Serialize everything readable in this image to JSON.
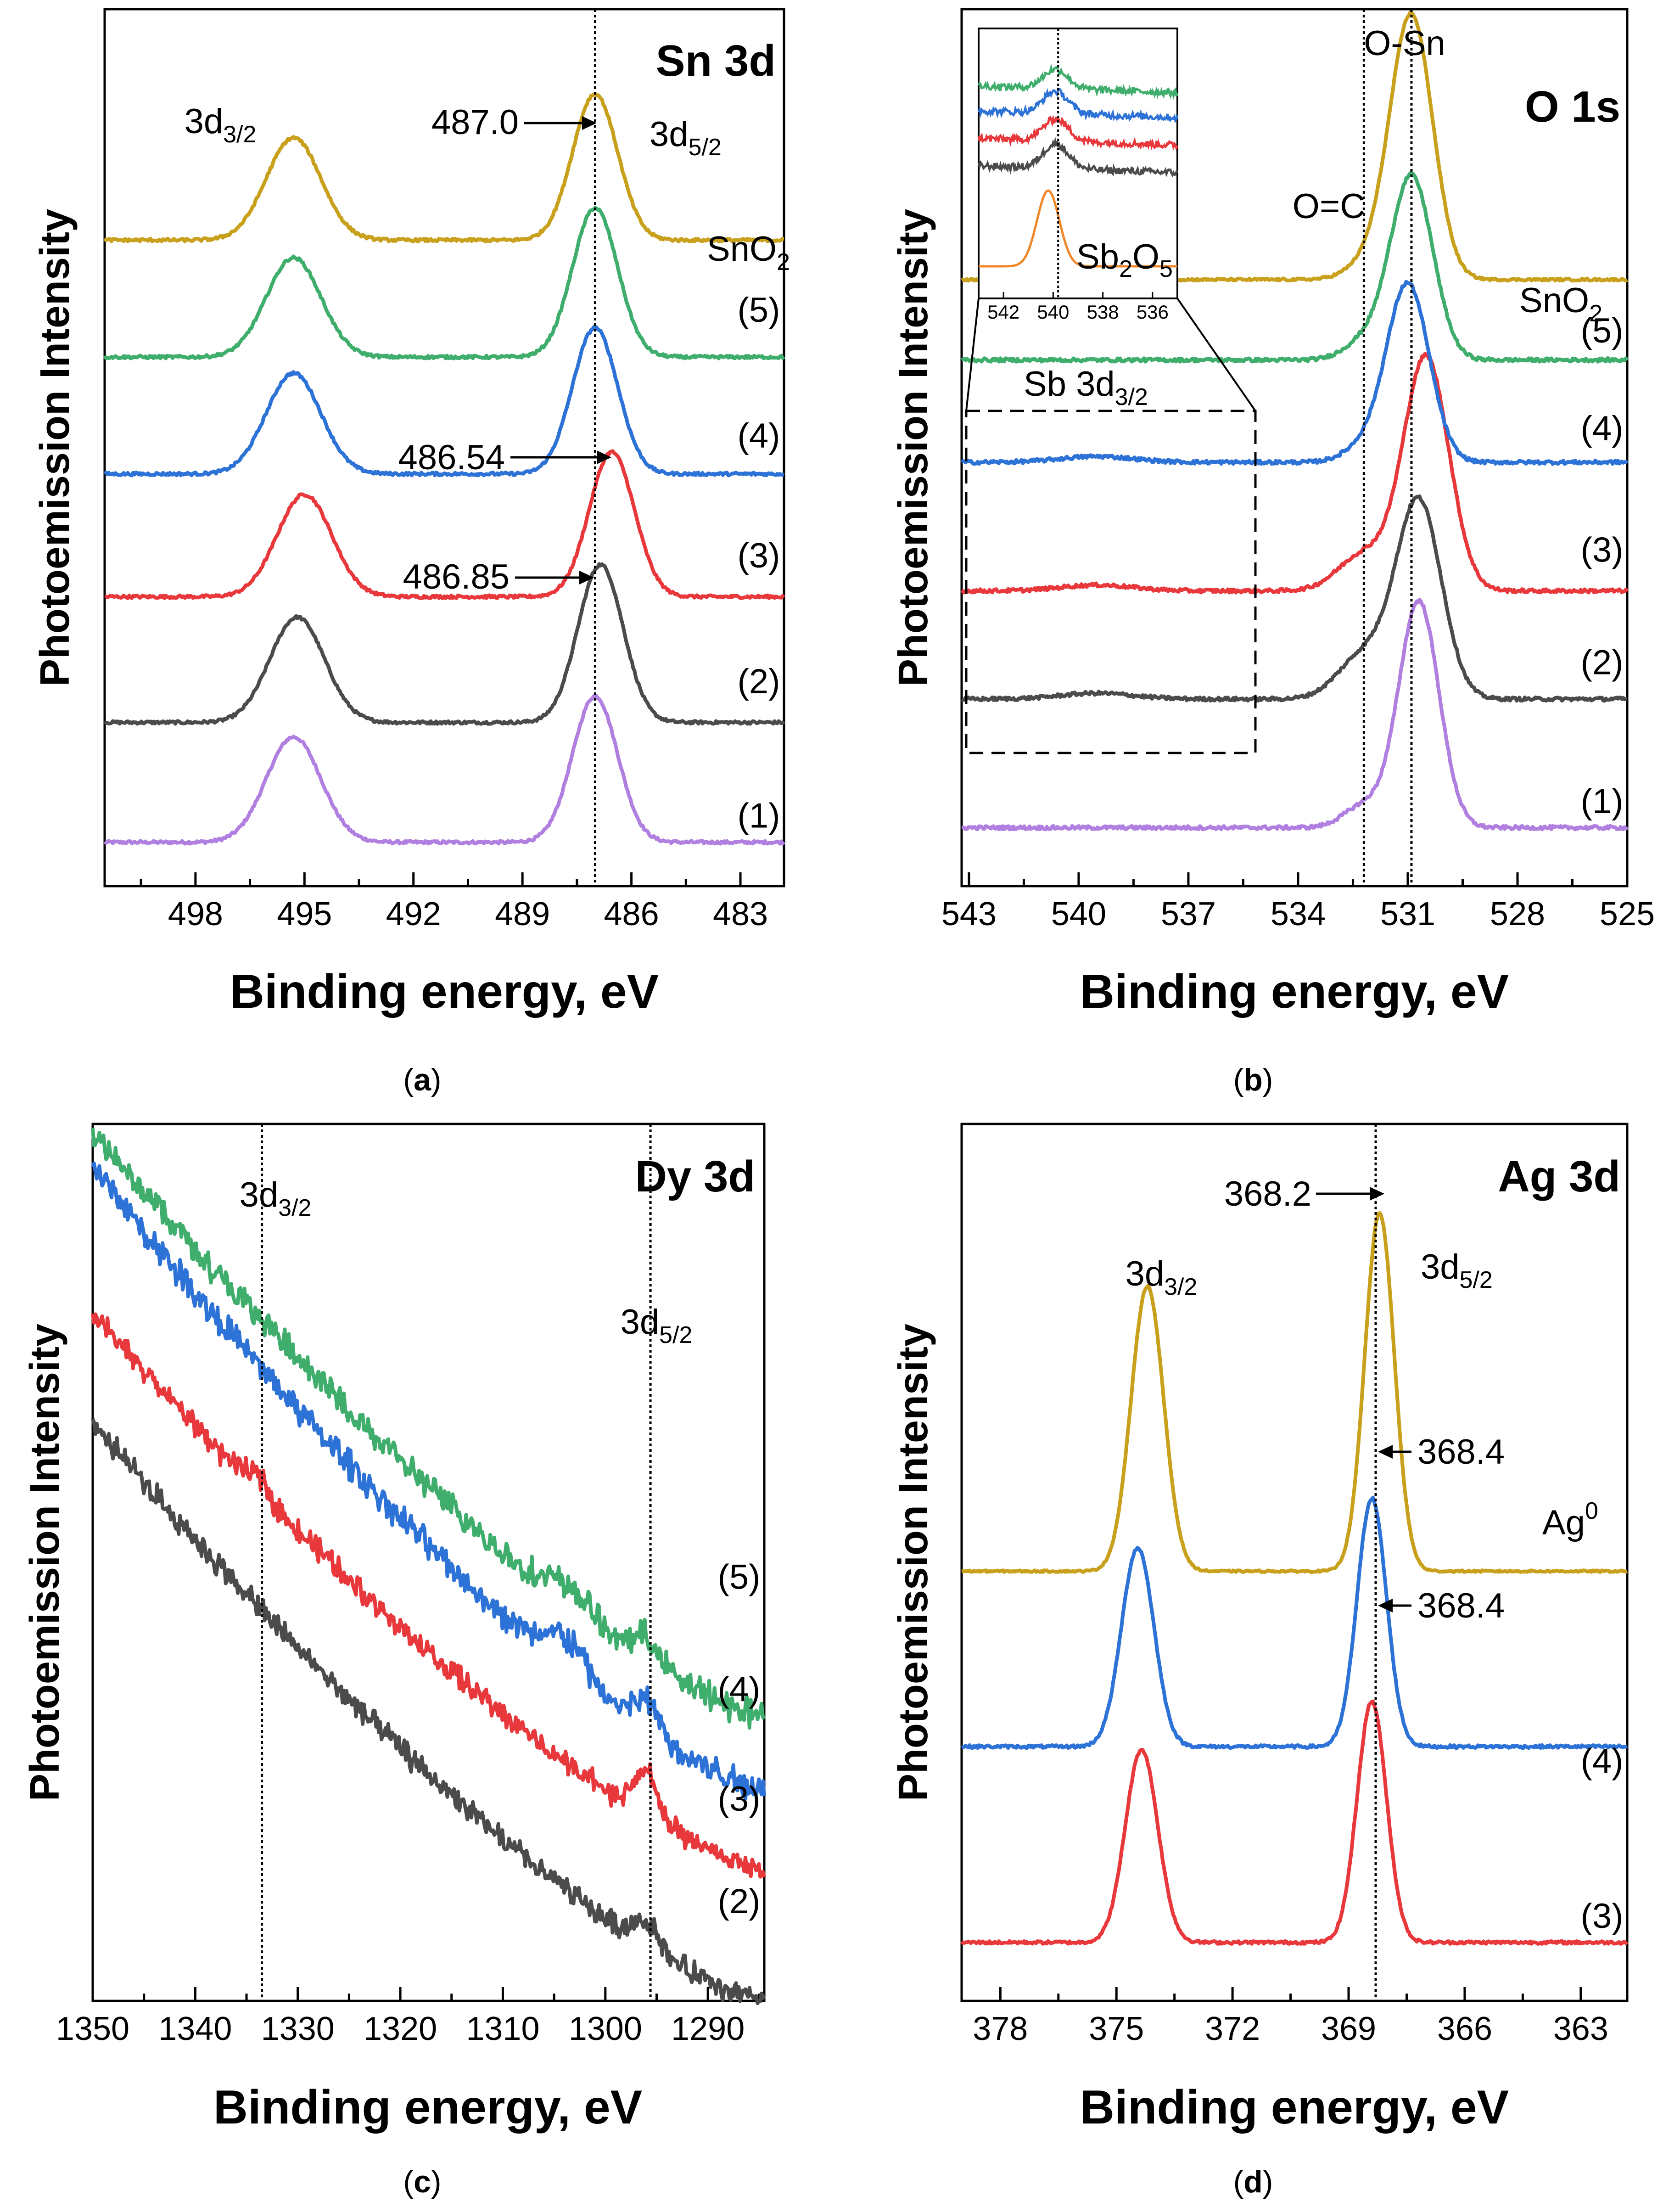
{
  "figure": {
    "captions": [
      "(a)",
      "(b)",
      "(c)",
      "(d)"
    ],
    "bold_captions": [
      "a",
      "b",
      "c",
      "d"
    ]
  },
  "colors": {
    "(1)": "#b07fe0",
    "(2)": "#4b4b4b",
    "(3)": "#e8383c",
    "(4)": "#2d72d6",
    "(5)": "#3fae6c",
    "SnO2": "#c9a01c",
    "Ag0": "#c9a01c",
    "Sb2O5": "#f0882a"
  },
  "chart_data": [
    {
      "id": "a",
      "type": "line",
      "title": "Sn 3d",
      "xlabel": "Binding energy, eV",
      "ylabel": "Photoemission Intensity",
      "xlim": [
        500.5,
        481.8
      ],
      "ylim": [
        0,
        6.0
      ],
      "xticks": [
        498,
        495,
        492,
        489,
        486,
        483
      ],
      "series": [
        {
          "name": "(1)",
          "offset": 0.3,
          "peaks": [
            {
              "x": 495.3,
              "h": 0.72,
              "w": 0.75
            },
            {
              "x": 487.0,
              "h": 1.0,
              "w": 0.62
            }
          ],
          "noise": 0.01
        },
        {
          "name": "(2)",
          "offset": 1.12,
          "peaks": [
            {
              "x": 495.2,
              "h": 0.72,
              "w": 0.75
            },
            {
              "x": 486.85,
              "h": 1.08,
              "w": 0.62
            }
          ],
          "noise": 0.01,
          "label_pos": 1.32
        },
        {
          "name": "(3)",
          "offset": 1.98,
          "peaks": [
            {
              "x": 495.0,
              "h": 0.7,
              "w": 0.75
            },
            {
              "x": 486.54,
              "h": 0.99,
              "w": 0.62
            }
          ],
          "noise": 0.01,
          "label_pos": 2.18
        },
        {
          "name": "(4)",
          "offset": 2.82,
          "peaks": [
            {
              "x": 495.3,
              "h": 0.69,
              "w": 0.75
            },
            {
              "x": 487.0,
              "h": 1.0,
              "w": 0.62
            }
          ],
          "noise": 0.01,
          "label_pos": 3.0
        },
        {
          "name": "(5)",
          "offset": 3.62,
          "peaks": [
            {
              "x": 495.3,
              "h": 0.68,
              "w": 0.75
            },
            {
              "x": 487.0,
              "h": 1.02,
              "w": 0.62
            }
          ],
          "noise": 0.01,
          "label_pos": 3.86
        },
        {
          "name": "SnO2",
          "offset": 4.42,
          "peaks": [
            {
              "x": 495.3,
              "h": 0.7,
              "w": 0.75
            },
            {
              "x": 487.0,
              "h": 1.0,
              "w": 0.62
            }
          ],
          "noise": 0.01
        }
      ],
      "series_labels": {
        "SnO2": "SnO",
        "SnO2_sub": "2"
      },
      "annotations": {
        "peak_487_0": "487.0",
        "peak_486_54": "486.54",
        "peak_486_85": "486.85",
        "peak_3d32": "3d",
        "peak_3d32_sub": "3/2",
        "peak_3d52": "3d",
        "peak_3d52_sub": "5/2"
      },
      "reference_lines": [
        487.0
      ]
    },
    {
      "id": "b",
      "type": "line",
      "title": "O 1s",
      "xlabel": "Binding energy, eV",
      "ylabel": "Photoemission Intensity",
      "xlim": [
        543.2,
        525.0
      ],
      "ylim": [
        0,
        6.0
      ],
      "xticks": [
        543,
        540,
        537,
        534,
        531,
        528,
        525
      ],
      "series": [
        {
          "name": "(1)",
          "offset": 0.4,
          "peaks": [
            {
              "x": 532.2,
              "h": 0.15,
              "w": 0.55
            },
            {
              "x": 530.7,
              "h": 1.55,
              "w": 0.55
            }
          ],
          "noise": 0.012
        },
        {
          "name": "(2)",
          "offset": 1.28,
          "peaks": [
            {
              "x": 532.2,
              "h": 0.3,
              "w": 0.7
            },
            {
              "x": 530.7,
              "h": 1.35,
              "w": 0.62
            },
            {
              "x": 539.5,
              "h": 0.04,
              "w": 1.0
            }
          ],
          "noise": 0.012,
          "label_pos": 1.45
        },
        {
          "name": "(3)",
          "offset": 2.02,
          "peaks": [
            {
              "x": 532.2,
              "h": 0.25,
              "w": 0.7
            },
            {
              "x": 530.5,
              "h": 1.6,
              "w": 0.62
            },
            {
              "x": 539.5,
              "h": 0.04,
              "w": 1.0
            }
          ],
          "noise": 0.012,
          "label_pos": 2.22
        },
        {
          "name": "(4)",
          "offset": 2.9,
          "peaks": [
            {
              "x": 532.2,
              "h": 0.1,
              "w": 0.55
            },
            {
              "x": 531.0,
              "h": 1.22,
              "w": 0.58
            },
            {
              "x": 539.5,
              "h": 0.04,
              "w": 1.0
            }
          ],
          "noise": 0.012,
          "label_pos": 3.05
        },
        {
          "name": "(5)",
          "offset": 3.6,
          "peaks": [
            {
              "x": 532.2,
              "h": 0.12,
              "w": 0.55
            },
            {
              "x": 530.9,
              "h": 1.26,
              "w": 0.58
            }
          ],
          "noise": 0.012,
          "label_pos": 3.72
        },
        {
          "name": "SnO2",
          "offset": 4.15,
          "peaks": [
            {
              "x": 532.0,
              "h": 0.12,
              "w": 0.6
            },
            {
              "x": 530.9,
              "h": 1.8,
              "w": 0.58
            }
          ],
          "noise": 0.008
        }
      ],
      "series_labels": {
        "SnO2": "SnO",
        "SnO2_sub": "2"
      },
      "annotations": {
        "o_sn": "O-Sn",
        "o_c": "O=C",
        "sb_3d": "Sb 3d",
        "sb_3d_sub": "3/2"
      },
      "reference_lines": [
        532.2,
        530.9
      ],
      "inset": {
        "xlim": [
          543.0,
          535.0
        ],
        "xticks": [
          542,
          540,
          538,
          536
        ],
        "reference_line": 539.8,
        "label": "Sb",
        "label_sub1": "2",
        "label_mid": "O",
        "label_sub2": "5",
        "series": [
          {
            "name": "Sb2O5",
            "offset": 0.05,
            "peaks": [
              {
                "x": 540.2,
                "h": 0.55,
                "w": 0.45
              }
            ],
            "noise": 0.0
          },
          {
            "name": "(2)",
            "offset": 0.78,
            "peaks": [
              {
                "x": 539.9,
                "h": 0.18,
                "w": 0.5
              }
            ],
            "noise": 0.025,
            "slope": 0.05
          },
          {
            "name": "(3)",
            "offset": 0.98,
            "peaks": [
              {
                "x": 539.9,
                "h": 0.16,
                "w": 0.5
              }
            ],
            "noise": 0.025,
            "slope": 0.05
          },
          {
            "name": "(4)",
            "offset": 1.18,
            "peaks": [
              {
                "x": 539.9,
                "h": 0.16,
                "w": 0.5
              }
            ],
            "noise": 0.025,
            "slope": 0.05
          },
          {
            "name": "(5)",
            "offset": 1.36,
            "peaks": [
              {
                "x": 539.9,
                "h": 0.14,
                "w": 0.5
              }
            ],
            "noise": 0.025,
            "slope": 0.05
          }
        ]
      }
    },
    {
      "id": "c",
      "type": "line",
      "title": "Dy 3d",
      "xlabel": "Binding energy, eV",
      "ylabel": "Photoemission Intensity",
      "xlim": [
        1350,
        1284.5
      ],
      "ylim": [
        0,
        6.0
      ],
      "xticks": [
        1350,
        1340,
        1330,
        1320,
        1310,
        1300,
        1290
      ],
      "series": [
        {
          "name": "(2)",
          "start": 3.95,
          "end": 0.0,
          "peaks": [
            {
              "x": 1296.0,
              "h": 0.18,
              "w": 1.2
            }
          ],
          "noise": 0.05,
          "label_pos": 0.6
        },
        {
          "name": "(3)",
          "start": 4.7,
          "end": 0.9,
          "peaks": [
            {
              "x": 1296.0,
              "h": 0.3,
              "w": 1.2
            },
            {
              "x": 1333.8,
              "h": 0.1,
              "w": 1.0
            }
          ],
          "noise": 0.05,
          "label_pos": 1.3
        },
        {
          "name": "(4)",
          "start": 5.7,
          "end": 1.45,
          "peaks": [
            {
              "x": 1303.8,
              "h": 0.22,
              "w": 2.0
            },
            {
              "x": 1296.0,
              "h": 0.2,
              "w": 1.2
            }
          ],
          "noise": 0.06,
          "label_pos": 2.05
        },
        {
          "name": "(5)",
          "start": 5.95,
          "end": 1.95,
          "peaks": [
            {
              "x": 1303.5,
              "h": 0.14,
              "w": 2.0
            },
            {
              "x": 1296.0,
              "h": 0.16,
              "w": 1.2
            }
          ],
          "noise": 0.06,
          "label_pos": 2.82
        }
      ],
      "annotations": {
        "peak_3d32": "3d",
        "peak_3d32_sub": "3/2",
        "peak_3d52": "3d",
        "peak_3d52_sub": "5/2"
      },
      "reference_lines": [
        1333.5,
        1295.6
      ]
    },
    {
      "id": "d",
      "type": "line",
      "title": "Ag 3d",
      "xlabel": "Binding energy, eV",
      "ylabel": "Photoemission Intensity",
      "xlim": [
        379.0,
        361.8
      ],
      "ylim": [
        0,
        6.0
      ],
      "xticks": [
        378,
        375,
        372,
        369,
        366,
        363
      ],
      "series": [
        {
          "name": "(3)",
          "offset": 0.4,
          "peaks": [
            {
              "x": 374.35,
              "h": 1.32,
              "w": 0.42
            },
            {
              "x": 368.4,
              "h": 1.65,
              "w": 0.38
            }
          ],
          "noise": 0.01
        },
        {
          "name": "(4)",
          "offset": 1.74,
          "peaks": [
            {
              "x": 374.45,
              "h": 1.36,
              "w": 0.42
            },
            {
              "x": 368.4,
              "h": 1.7,
              "w": 0.38
            }
          ],
          "noise": 0.01,
          "label_pos": 1.56
        },
        {
          "name": "Ag0",
          "offset": 2.94,
          "peaks": [
            {
              "x": 374.2,
              "h": 1.95,
              "w": 0.42
            },
            {
              "x": 368.2,
              "h": 2.45,
              "w": 0.38
            }
          ],
          "noise": 0.006
        }
      ],
      "series_labels": {
        "Ag0": "Ag",
        "Ag0_sup": "0"
      },
      "annotations": {
        "peak_368_2": "368.2",
        "peak_368_4_a": "368.4",
        "peak_368_4_b": "368.4",
        "peak_3d32": "3d",
        "peak_3d32_sub": "3/2",
        "peak_3d52": "3d",
        "peak_3d52_sub": "5/2"
      },
      "reference_lines": [
        368.3
      ]
    }
  ]
}
